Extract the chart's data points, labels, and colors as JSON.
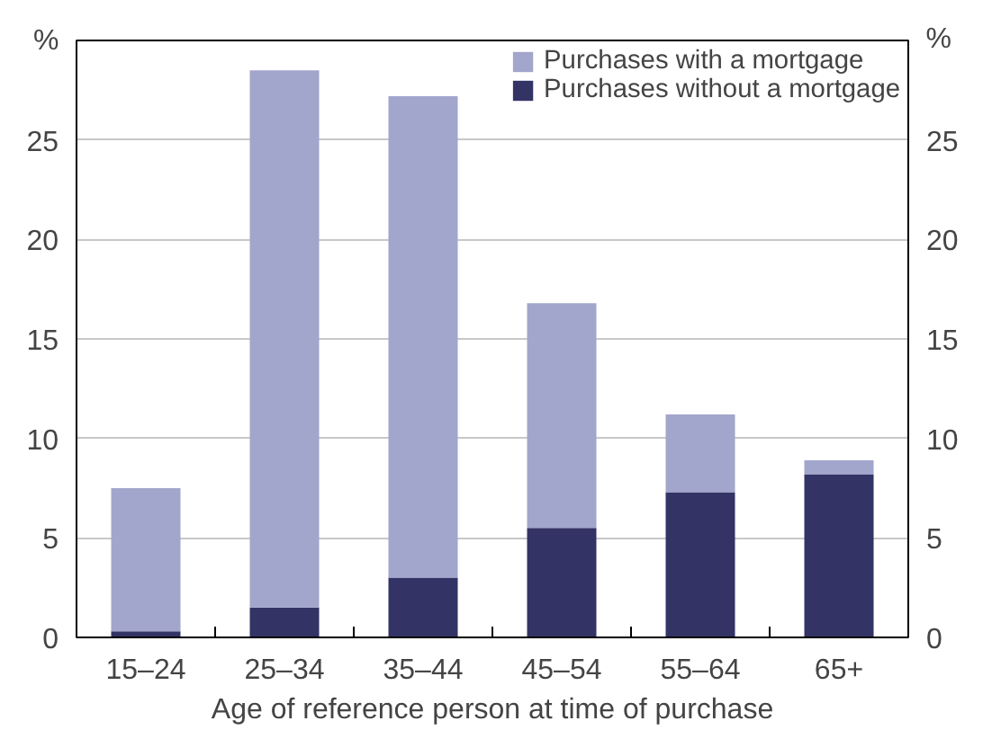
{
  "chart_data": {
    "type": "bar",
    "stacked": true,
    "xlabel": "Age of reference person at time of purchase",
    "ylabel": "%",
    "y2label": "%",
    "categories": [
      "15–24",
      "25–34",
      "35–44",
      "45–54",
      "55–64",
      "65+"
    ],
    "series": [
      {
        "name": "Purchases without a mortgage",
        "color": "#333366",
        "values": [
          0.3,
          1.5,
          3.0,
          5.5,
          7.3,
          8.2
        ]
      },
      {
        "name": "Purchases with a mortgage",
        "color": "#a2a5cc",
        "values": [
          7.2,
          27.0,
          24.2,
          11.3,
          3.9,
          0.7
        ]
      }
    ],
    "ylim": [
      0,
      30
    ],
    "yticks": [
      0,
      5,
      10,
      15,
      20,
      25
    ],
    "y2lim": [
      0,
      30
    ],
    "y2ticks": [
      0,
      5,
      10,
      15,
      20,
      25
    ],
    "grid": "y",
    "legend": "top right"
  }
}
